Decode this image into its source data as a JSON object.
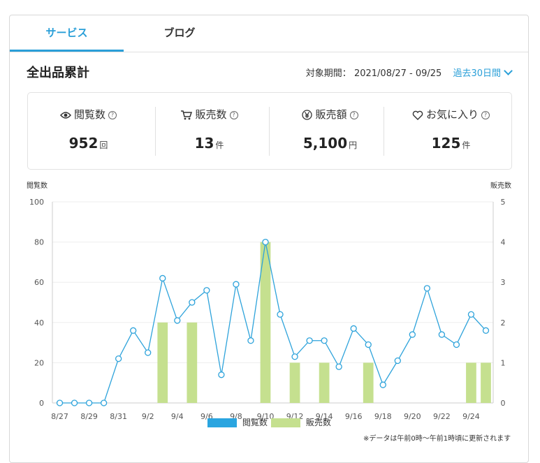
{
  "tabs": [
    {
      "label": "サービス",
      "active": true
    },
    {
      "label": "ブログ",
      "active": false
    }
  ],
  "heading": "全出品累計",
  "period": {
    "label": "対象期間：",
    "range": "2021/08/27 - 09/25",
    "selector": "過去30日間"
  },
  "stats": [
    {
      "label": "閲覧数",
      "icon": "eye-icon",
      "value": "952",
      "unit": "回"
    },
    {
      "label": "販売数",
      "icon": "cart-icon",
      "value": "13",
      "unit": "件"
    },
    {
      "label": "販売額",
      "icon": "yen-icon",
      "value": "5,100",
      "unit": "円"
    },
    {
      "label": "お気に入り",
      "icon": "heart-icon",
      "value": "125",
      "unit": "件"
    }
  ],
  "colors": {
    "accent": "#2a9fd8",
    "line": "#2ea3db",
    "bar": "#c5e08f"
  },
  "chart_data": {
    "type": "bar+line",
    "left_axis_label": "閲覧数",
    "right_axis_label": "販売数",
    "left_ylim": [
      0,
      100
    ],
    "right_ylim": [
      0,
      5
    ],
    "left_ticks": [
      0,
      20,
      40,
      60,
      80,
      100
    ],
    "right_ticks": [
      0,
      1,
      2,
      3,
      4,
      5
    ],
    "x": [
      "8/27",
      "8/28",
      "8/29",
      "8/30",
      "8/31",
      "9/1",
      "9/2",
      "9/3",
      "9/4",
      "9/5",
      "9/6",
      "9/7",
      "9/8",
      "9/9",
      "9/10",
      "9/11",
      "9/12",
      "9/13",
      "9/14",
      "9/15",
      "9/16",
      "9/17",
      "9/18",
      "9/19",
      "9/20",
      "9/21",
      "9/22",
      "9/23",
      "9/24",
      "9/25"
    ],
    "x_tick_labels": [
      "8/27",
      "8/29",
      "8/31",
      "9/2",
      "9/4",
      "9/6",
      "9/8",
      "9/10",
      "9/12",
      "9/14",
      "9/16",
      "9/18",
      "9/20",
      "9/22",
      "9/24"
    ],
    "series": [
      {
        "name": "閲覧数",
        "type": "line",
        "axis": "left",
        "values": [
          0,
          0,
          0,
          0,
          22,
          36,
          25,
          62,
          41,
          50,
          56,
          14,
          59,
          31,
          80,
          44,
          23,
          31,
          31,
          18,
          37,
          29,
          9,
          21,
          34,
          57,
          34,
          29,
          44,
          36
        ]
      },
      {
        "name": "販売数",
        "type": "bar",
        "axis": "right",
        "values": [
          0,
          0,
          0,
          0,
          0,
          0,
          0,
          2,
          0,
          2,
          0,
          0,
          0,
          0,
          4,
          0,
          1,
          0,
          1,
          0,
          0,
          1,
          0,
          0,
          0,
          0,
          0,
          0,
          1,
          1
        ]
      }
    ],
    "legend": [
      {
        "label": "閲覧数",
        "color": "#2aa5e0"
      },
      {
        "label": "販売数",
        "color": "#c5e08f"
      }
    ],
    "note": "※データは午前0時〜午前1時頃に更新されます"
  }
}
